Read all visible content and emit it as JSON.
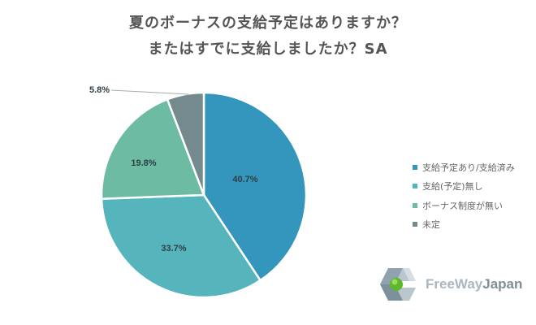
{
  "title": {
    "line1": "夏のボーナスの支給予定はありますか？",
    "line2": "またはすでに支給しましたか？SA"
  },
  "legend": [
    {
      "label": "支給予定あり/支給済み",
      "color": "#3596BD"
    },
    {
      "label": "支給(予定)無し",
      "color": "#56B4BD"
    },
    {
      "label": "ボーナス制度が無い",
      "color": "#6DBBA3"
    },
    {
      "label": "未定",
      "color": "#758A8E"
    }
  ],
  "labels": {
    "s0": "40.7%",
    "s1": "33.7%",
    "s2": "19.8%",
    "s3": "5.8%"
  },
  "logo": {
    "part1": "FreeWay",
    "part2": "Japan"
  },
  "chart_data": {
    "type": "pie",
    "title": "夏のボーナスの支給予定はありますか？またはすでに支給しましたか？SA",
    "categories": [
      "支給予定あり/支給済み",
      "支給(予定)無し",
      "ボーナス制度が無い",
      "未定"
    ],
    "values": [
      40.7,
      33.7,
      19.8,
      5.8
    ],
    "colors": [
      "#3596BD",
      "#56B4BD",
      "#6DBBA3",
      "#758A8E"
    ],
    "unit": "%",
    "legend_position": "right",
    "start_angle": "12 o'clock, clockwise"
  }
}
